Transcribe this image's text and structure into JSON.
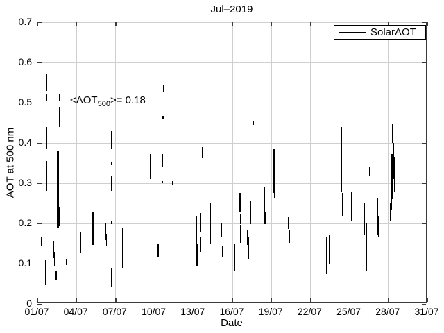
{
  "figure": {
    "title": "Jul–2019",
    "xlabel": "Date",
    "ylabel": "AOT at 500 nm",
    "annotation": {
      "prefix": "<AOT",
      "sub": "500",
      "suffix": ">= 0.18"
    },
    "legend": {
      "label": "SolarAOT"
    }
  },
  "chart_data": {
    "type": "line",
    "title": "Jul–2019",
    "xlabel": "Date",
    "ylabel": "AOT at 500 nm",
    "x_tick_labels": [
      "01/07",
      "04/07",
      "07/07",
      "10/07",
      "13/07",
      "16/07",
      "19/07",
      "22/07",
      "25/07",
      "28/07",
      "31/07"
    ],
    "x_tick_days": [
      0,
      3,
      6,
      9,
      12,
      15,
      18,
      21,
      24,
      27,
      30
    ],
    "y_ticks": [
      0,
      0.1,
      0.2,
      0.3,
      0.4,
      0.5,
      0.6,
      0.7
    ],
    "y_tick_labels": [
      "0",
      "0.1",
      "0.2",
      "0.3",
      "0.4",
      "0.5",
      "0.6",
      "0.7"
    ],
    "xlim_days_from_01_07": [
      0,
      30
    ],
    "ylim": [
      0,
      0.7
    ],
    "grid": true,
    "legend": {
      "label": "SolarAOT",
      "position": "top-right"
    },
    "mean_aot_500": 0.18,
    "series": [
      {
        "name": "SolarAOT",
        "color": "#000000",
        "note": "segments are [day_offset_from_01_07, aot_low, aot_high, optional_px_width]; dense intraday measurement streaks",
        "segments": [
          [
            0.18,
            0.135,
            0.187
          ],
          [
            0.3,
            0.143,
            0.165
          ],
          [
            0.64,
            0.047,
            0.108
          ],
          [
            0.66,
            0.12,
            0.165
          ],
          [
            0.67,
            0.175,
            0.226
          ],
          [
            0.68,
            0.28,
            0.355,
            2
          ],
          [
            0.7,
            0.384,
            0.44
          ],
          [
            0.705,
            0.505,
            0.52
          ],
          [
            0.71,
            0.53,
            0.57
          ],
          [
            1.25,
            0.114,
            0.156
          ],
          [
            1.33,
            0.095,
            0.13
          ],
          [
            1.45,
            0.06,
            0.082
          ],
          [
            1.58,
            0.19,
            0.38,
            2.5
          ],
          [
            1.66,
            0.193,
            0.24
          ],
          [
            1.7,
            0.44,
            0.49
          ],
          [
            1.71,
            0.505,
            0.52
          ],
          [
            2.24,
            0.096,
            0.11
          ],
          [
            3.35,
            0.128,
            0.18
          ],
          [
            4.28,
            0.147,
            0.228,
            2
          ],
          [
            5.25,
            0.158,
            0.2
          ],
          [
            5.3,
            0.145,
            0.172
          ],
          [
            5.68,
            0.042,
            0.088
          ],
          [
            5.69,
            0.198,
            0.206
          ],
          [
            5.7,
            0.28,
            0.318
          ],
          [
            5.705,
            0.345,
            0.352
          ],
          [
            5.71,
            0.384,
            0.43
          ],
          [
            6.28,
            0.2,
            0.228
          ],
          [
            6.55,
            0.088,
            0.19
          ],
          [
            7.35,
            0.106,
            0.115
          ],
          [
            8.52,
            0.123,
            0.152
          ],
          [
            8.68,
            0.31,
            0.372
          ],
          [
            9.28,
            0.117,
            0.15
          ],
          [
            9.42,
            0.086,
            0.097
          ],
          [
            9.58,
            0.158,
            0.192
          ],
          [
            9.62,
            0.3,
            0.306
          ],
          [
            9.65,
            0.34,
            0.372
          ],
          [
            9.67,
            0.458,
            0.468
          ],
          [
            9.68,
            0.528,
            0.545
          ],
          [
            10.4,
            0.297,
            0.305
          ],
          [
            11.65,
            0.294,
            0.31
          ],
          [
            12.22,
            0.15,
            0.218
          ],
          [
            12.28,
            0.094,
            0.15
          ],
          [
            12.55,
            0.13,
            0.168
          ],
          [
            12.58,
            0.178,
            0.226
          ],
          [
            12.68,
            0.362,
            0.39
          ],
          [
            13.28,
            0.15,
            0.25,
            2
          ],
          [
            13.58,
            0.34,
            0.382
          ],
          [
            14.18,
            0.168,
            0.2
          ],
          [
            14.22,
            0.116,
            0.145
          ],
          [
            14.65,
            0.204,
            0.212
          ],
          [
            15.18,
            0.082,
            0.15
          ],
          [
            15.35,
            0.072,
            0.096
          ],
          [
            15.58,
            0.228,
            0.276
          ],
          [
            15.6,
            0.198,
            0.224
          ],
          [
            15.63,
            0.152,
            0.194
          ],
          [
            16.18,
            0.146,
            0.185
          ],
          [
            16.22,
            0.112,
            0.166
          ],
          [
            16.38,
            0.198,
            0.255
          ],
          [
            16.62,
            0.444,
            0.456
          ],
          [
            17.42,
            0.3,
            0.372
          ],
          [
            17.45,
            0.255,
            0.292
          ],
          [
            17.46,
            0.226,
            0.276
          ],
          [
            17.5,
            0.198,
            0.227
          ],
          [
            18.18,
            0.275,
            0.385,
            2.5
          ],
          [
            18.22,
            0.262,
            0.3
          ],
          [
            19.32,
            0.186,
            0.215
          ],
          [
            19.38,
            0.152,
            0.183
          ],
          [
            22.25,
            0.074,
            0.168
          ],
          [
            22.28,
            0.054,
            0.075
          ],
          [
            22.45,
            0.1,
            0.17
          ],
          [
            23.38,
            0.315,
            0.44
          ],
          [
            23.4,
            0.278,
            0.318
          ],
          [
            23.46,
            0.218,
            0.276
          ],
          [
            24.18,
            0.205,
            0.278
          ],
          [
            24.2,
            0.275,
            0.302
          ],
          [
            25.15,
            0.17,
            0.25
          ],
          [
            25.3,
            0.105,
            0.2
          ],
          [
            25.33,
            0.082,
            0.106
          ],
          [
            25.55,
            0.318,
            0.342
          ],
          [
            26.18,
            0.17,
            0.264
          ],
          [
            26.25,
            0.166,
            0.218
          ],
          [
            26.28,
            0.278,
            0.346
          ],
          [
            27.18,
            0.205,
            0.252
          ],
          [
            27.22,
            0.235,
            0.302
          ],
          [
            27.28,
            0.26,
            0.372,
            2.5
          ],
          [
            27.32,
            0.4,
            0.446
          ],
          [
            27.35,
            0.452,
            0.49
          ],
          [
            27.4,
            0.31,
            0.4,
            2
          ],
          [
            27.45,
            0.278,
            0.35
          ],
          [
            27.5,
            0.344,
            0.364
          ],
          [
            27.88,
            0.334,
            0.346
          ]
        ]
      }
    ]
  },
  "colors": {
    "background": "#ffffff",
    "grid": "#cfcfcf",
    "axis": "#3a3a3a",
    "data": "#000000",
    "legend_border": "#000000"
  }
}
